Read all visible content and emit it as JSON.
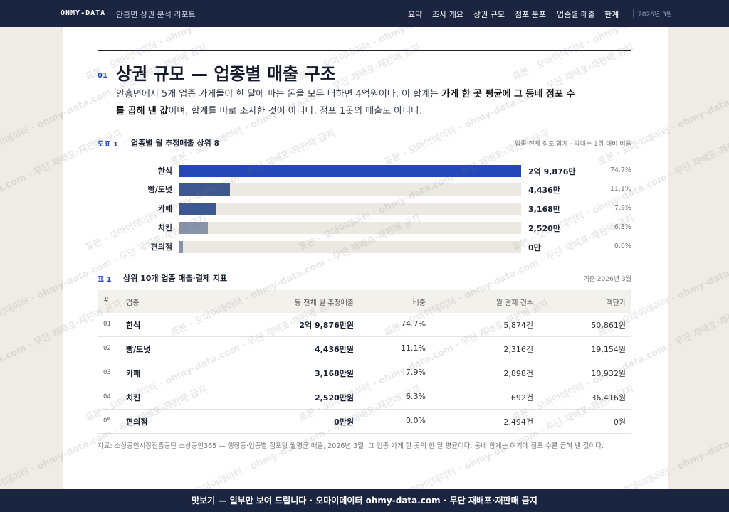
{
  "nav": {
    "brand": "OHMY-DATA",
    "subtitle": "안흥면 상권 분석 리포트",
    "links": [
      "요약",
      "조사 개요",
      "상권 규모",
      "점포 분포",
      "업종별 매출",
      "한계"
    ],
    "date": "2026년 3월"
  },
  "section": {
    "number": "01",
    "title": "상권 규모 — 업종별 매출 구조",
    "lead": [
      "안흥면에서 5개 업종 가게들이 한 달에 파는 돈을 모두 더하면 4억원이다. 이 합계는 ",
      "가게 한 곳 평균에 그 동네 점포 수를 곱해 낸 값",
      "이며, 합계를 따로 조사한 것이 아니다. 점포 1곳의 매출도 아니다."
    ]
  },
  "figure": {
    "label": "도표 1",
    "title": "업종별 월 추정매출 상위 8",
    "note": "업종 전체 점포 합계 · 막대는 1위 대비 비율",
    "chart": {
      "type": "bar",
      "categories": [
        "한식",
        "빵/도넛",
        "카페",
        "치킨",
        "편의점"
      ],
      "values": [
        29876,
        4436,
        3168,
        2520,
        0
      ],
      "value_labels": [
        "2억 9,876만",
        "4,436만",
        "3,168만",
        "2,520만",
        "0만"
      ],
      "colors": [
        "#2448b8",
        "#3d5791",
        "#3d5791",
        "#8893aa",
        "#8893aa"
      ],
      "shares": [
        74.7,
        11.1,
        7.9,
        6.3,
        0
      ],
      "share_labels": [
        "74.7%",
        "11.1%",
        "7.9%",
        "6.3%",
        "0.0%"
      ]
    }
  },
  "table": {
    "label": "표 1",
    "title": "상위 10개 업종 매출·결제 지표",
    "note": "기준 2026년 3월",
    "columns": [
      "#",
      "업종",
      "동 전체 월 추정매출",
      "비중",
      "월 결제 건수",
      "객단가"
    ],
    "rows": [
      [
        "01",
        "한식",
        "2억 9,876만원",
        "74.7%",
        "5,874건",
        "50,861원"
      ],
      [
        "02",
        "빵/도넛",
        "4,436만원",
        "11.1%",
        "2,316건",
        "19,154원"
      ],
      [
        "03",
        "카페",
        "3,168만원",
        "7.9%",
        "2,898건",
        "10,932원"
      ],
      [
        "04",
        "치킨",
        "2,520만원",
        "6.3%",
        "692건",
        "36,416원"
      ],
      [
        "05",
        "편의점",
        "0만원",
        "0.0%",
        "2,494건",
        "0원"
      ]
    ]
  },
  "source": "자료: 소상공인시장진흥공단 소상공인365 — 행정동·업종별 점포당 월평균 매출, 2026년 3월. 그 업종 가게 한 곳의 한 달 평균이다. 동네 합계는 여기에 점포 수를 곱해 낸 값이다.",
  "watermark": "표본 · 오마이데이터 · ohmy-data.com · 무단 재배포·재판매 금지",
  "footer": "맛보기 — 일부만 보여 드립니다 · 오마이데이터 ohmy-data.com · 무단 재배포·재판매 금지"
}
